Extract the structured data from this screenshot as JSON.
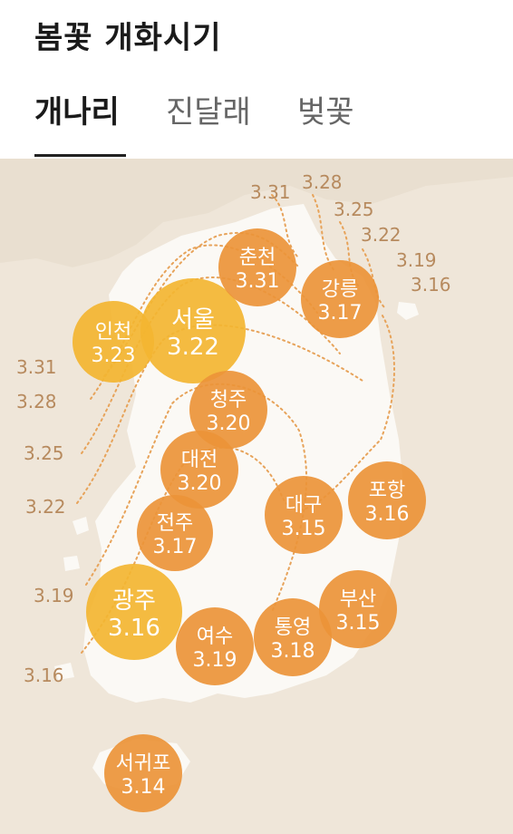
{
  "title": "봄꽃 개화시기",
  "tabs": [
    {
      "label": "개나리",
      "active": true
    },
    {
      "label": "진달래",
      "active": false
    },
    {
      "label": "벚꽃",
      "active": false
    }
  ],
  "colors": {
    "background_land": "#efe6d9",
    "korea_land": "#fbf9f5",
    "early_bloom": "#eb9438",
    "late_bloom": "#f3b531",
    "isoline": "#e7a35a",
    "label_text": "#b78a5e"
  },
  "cities": [
    {
      "name": "인천",
      "date": "3.23"
    },
    {
      "name": "서울",
      "date": "3.22"
    },
    {
      "name": "춘천",
      "date": "3.31"
    },
    {
      "name": "강릉",
      "date": "3.17"
    },
    {
      "name": "청주",
      "date": "3.20"
    },
    {
      "name": "대전",
      "date": "3.20"
    },
    {
      "name": "전주",
      "date": "3.17"
    },
    {
      "name": "대구",
      "date": "3.15"
    },
    {
      "name": "포항",
      "date": "3.16"
    },
    {
      "name": "광주",
      "date": "3.16"
    },
    {
      "name": "여수",
      "date": "3.19"
    },
    {
      "name": "통영",
      "date": "3.18"
    },
    {
      "name": "부산",
      "date": "3.15"
    },
    {
      "name": "서귀포",
      "date": "3.14"
    }
  ],
  "isoline_labels": [
    "3.31",
    "3.28",
    "3.25",
    "3.22",
    "3.19",
    "3.16",
    "3.31",
    "3.28",
    "3.25",
    "3.22",
    "3.19",
    "3.16"
  ]
}
